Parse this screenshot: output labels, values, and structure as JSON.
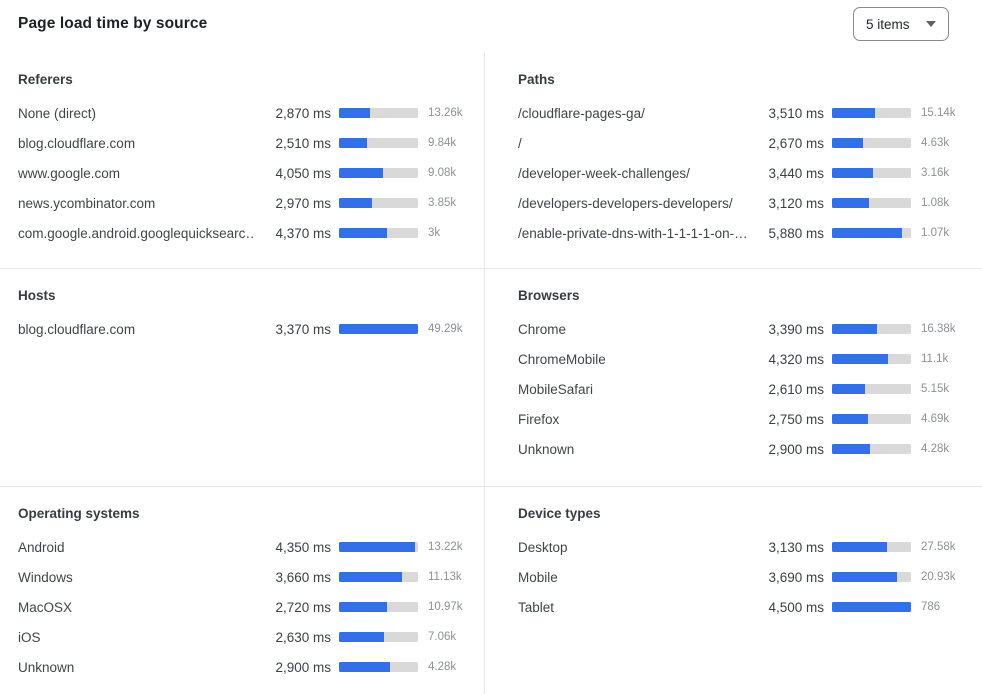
{
  "header": {
    "title": "Page load time by source",
    "items_dropdown": {
      "value": "5 items",
      "icon": "caret-down-icon"
    }
  },
  "colors": {
    "bar_fill": "#3370e8",
    "bar_track": "#d9d9d9",
    "divider": "#e7e7e7",
    "count_text": "#8d9095",
    "label_text": "#404448",
    "title_text": "#1e2124"
  },
  "panels": [
    {
      "title": "Referers",
      "rows": [
        {
          "label": "None (direct)",
          "time": "2,870 ms",
          "bar_pct": 39,
          "count": "13.26k"
        },
        {
          "label": "blog.cloudflare.com",
          "time": "2,510 ms",
          "bar_pct": 35,
          "count": "9.84k"
        },
        {
          "label": "www.google.com",
          "time": "4,050 ms",
          "bar_pct": 56,
          "count": "9.08k"
        },
        {
          "label": "news.ycombinator.com",
          "time": "2,970 ms",
          "bar_pct": 42,
          "count": "3.85k"
        },
        {
          "label": "com.google.android.googlequicksearc…",
          "time": "4,370 ms",
          "bar_pct": 61,
          "count": "3k"
        }
      ]
    },
    {
      "title": "Paths",
      "rows": [
        {
          "label": "/cloudflare-pages-ga/",
          "time": "3,510 ms",
          "bar_pct": 54,
          "count": "15.14k"
        },
        {
          "label": "/",
          "time": "2,670 ms",
          "bar_pct": 39,
          "count": "4.63k"
        },
        {
          "label": "/developer-week-challenges/",
          "time": "3,440 ms",
          "bar_pct": 52,
          "count": "3.16k"
        },
        {
          "label": "/developers-developers-developers/",
          "time": "3,120 ms",
          "bar_pct": 47,
          "count": "1.08k"
        },
        {
          "label": "/enable-private-dns-with-1-1-1-1-on-…",
          "time": "5,880 ms",
          "bar_pct": 89,
          "count": "1.07k"
        }
      ]
    },
    {
      "title": "Hosts",
      "rows": [
        {
          "label": "blog.cloudflare.com",
          "time": "3,370 ms",
          "bar_pct": 100,
          "count": "49.29k"
        }
      ]
    },
    {
      "title": "Browsers",
      "rows": [
        {
          "label": "Chrome",
          "time": "3,390 ms",
          "bar_pct": 57,
          "count": "16.38k"
        },
        {
          "label": "ChromeMobile",
          "time": "4,320 ms",
          "bar_pct": 71,
          "count": "11.1k"
        },
        {
          "label": "MobileSafari",
          "time": "2,610 ms",
          "bar_pct": 42,
          "count": "5.15k"
        },
        {
          "label": "Firefox",
          "time": "2,750 ms",
          "bar_pct": 45,
          "count": "4.69k"
        },
        {
          "label": "Unknown",
          "time": "2,900 ms",
          "bar_pct": 48,
          "count": "4.28k"
        }
      ]
    },
    {
      "title": "Operating systems",
      "rows": [
        {
          "label": "Android",
          "time": "4,350 ms",
          "bar_pct": 96,
          "count": "13.22k"
        },
        {
          "label": "Windows",
          "time": "3,660 ms",
          "bar_pct": 80,
          "count": "11.13k"
        },
        {
          "label": "MacOSX",
          "time": "2,720 ms",
          "bar_pct": 61,
          "count": "10.97k"
        },
        {
          "label": "iOS",
          "time": "2,630 ms",
          "bar_pct": 57,
          "count": "7.06k"
        },
        {
          "label": "Unknown",
          "time": "2,900 ms",
          "bar_pct": 64,
          "count": "4.28k"
        }
      ]
    },
    {
      "title": "Device types",
      "rows": [
        {
          "label": "Desktop",
          "time": "3,130 ms",
          "bar_pct": 70,
          "count": "27.58k"
        },
        {
          "label": "Mobile",
          "time": "3,690 ms",
          "bar_pct": 82,
          "count": "20.93k"
        },
        {
          "label": "Tablet",
          "time": "4,500 ms",
          "bar_pct": 100,
          "count": "786"
        }
      ]
    }
  ],
  "chart_data": [
    {
      "type": "bar",
      "orientation": "horizontal",
      "title": "Referers",
      "categories": [
        "None (direct)",
        "blog.cloudflare.com",
        "www.google.com",
        "news.ycombinator.com",
        "com.google.android.googlequicksearc…"
      ],
      "values": [
        2870,
        2510,
        4050,
        2970,
        4370
      ],
      "value_unit": "ms",
      "counts": [
        13260,
        9840,
        9080,
        3850,
        3000
      ],
      "bar_fill_pct": [
        39,
        35,
        56,
        42,
        61
      ]
    },
    {
      "type": "bar",
      "orientation": "horizontal",
      "title": "Paths",
      "categories": [
        "/cloudflare-pages-ga/",
        "/",
        "/developer-week-challenges/",
        "/developers-developers-developers/",
        "/enable-private-dns-with-1-1-1-1-on-…"
      ],
      "values": [
        3510,
        2670,
        3440,
        3120,
        5880
      ],
      "value_unit": "ms",
      "counts": [
        15140,
        4630,
        3160,
        1080,
        1070
      ],
      "bar_fill_pct": [
        54,
        39,
        52,
        47,
        89
      ]
    },
    {
      "type": "bar",
      "orientation": "horizontal",
      "title": "Hosts",
      "categories": [
        "blog.cloudflare.com"
      ],
      "values": [
        3370
      ],
      "value_unit": "ms",
      "counts": [
        49290
      ],
      "bar_fill_pct": [
        100
      ]
    },
    {
      "type": "bar",
      "orientation": "horizontal",
      "title": "Browsers",
      "categories": [
        "Chrome",
        "ChromeMobile",
        "MobileSafari",
        "Firefox",
        "Unknown"
      ],
      "values": [
        3390,
        4320,
        2610,
        2750,
        2900
      ],
      "value_unit": "ms",
      "counts": [
        16380,
        11100,
        5150,
        4690,
        4280
      ],
      "bar_fill_pct": [
        57,
        71,
        42,
        45,
        48
      ]
    },
    {
      "type": "bar",
      "orientation": "horizontal",
      "title": "Operating systems",
      "categories": [
        "Android",
        "Windows",
        "MacOSX",
        "iOS",
        "Unknown"
      ],
      "values": [
        4350,
        3660,
        2720,
        2630,
        2900
      ],
      "value_unit": "ms",
      "counts": [
        13220,
        11130,
        10970,
        7060,
        4280
      ],
      "bar_fill_pct": [
        96,
        80,
        61,
        57,
        64
      ]
    },
    {
      "type": "bar",
      "orientation": "horizontal",
      "title": "Device types",
      "categories": [
        "Desktop",
        "Mobile",
        "Tablet"
      ],
      "values": [
        3130,
        3690,
        4500
      ],
      "value_unit": "ms",
      "counts": [
        27580,
        20930,
        786
      ],
      "bar_fill_pct": [
        70,
        82,
        100
      ]
    }
  ]
}
